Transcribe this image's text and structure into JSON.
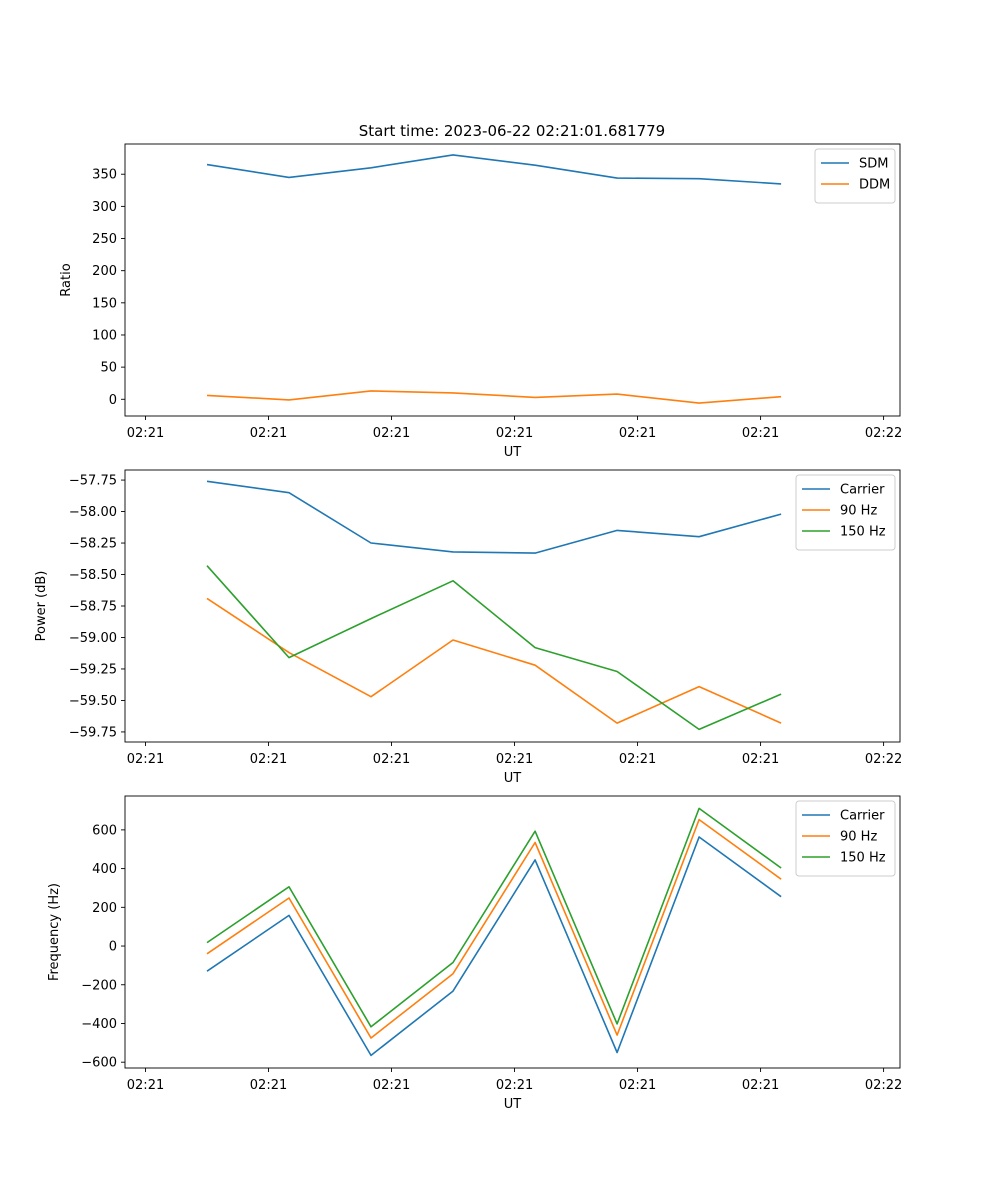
{
  "title": "Start time: 2023-06-22 02:21:01.681779",
  "chart_data": [
    {
      "type": "line",
      "xlabel": "UT",
      "ylabel": "Ratio",
      "x_tick_labels": [
        "02:21",
        "02:21",
        "02:21",
        "02:21",
        "02:21",
        "02:21",
        "02:22"
      ],
      "y_ticks": [
        0,
        50,
        100,
        150,
        200,
        250,
        300,
        350
      ],
      "ylim": [
        -26,
        397
      ],
      "legend_position": "top-right",
      "grid": false,
      "series": [
        {
          "name": "SDM",
          "color": "#1f77b4",
          "values": [
            365,
            345,
            360,
            380,
            364,
            344,
            343,
            335
          ]
        },
        {
          "name": "DDM",
          "color": "#ff7f0e",
          "values": [
            6,
            -1,
            13,
            10,
            3,
            8,
            -6,
            4
          ]
        }
      ]
    },
    {
      "type": "line",
      "xlabel": "UT",
      "ylabel": "Power (dB)",
      "x_tick_labels": [
        "02:21",
        "02:21",
        "02:21",
        "02:21",
        "02:21",
        "02:21",
        "02:22"
      ],
      "y_ticks": [
        -59.75,
        -59.5,
        -59.25,
        -59.0,
        -58.75,
        -58.5,
        -58.25,
        -58.0,
        -57.75
      ],
      "y_tick_labels": [
        "−59.75",
        "−59.50",
        "−59.25",
        "−59.00",
        "−58.75",
        "−58.50",
        "−58.25",
        "−58.00",
        "−57.75"
      ],
      "ylim": [
        -59.83,
        -57.67
      ],
      "legend_position": "top-right",
      "grid": false,
      "series": [
        {
          "name": "Carrier",
          "color": "#1f77b4",
          "values": [
            -57.76,
            -57.85,
            -58.25,
            -58.32,
            -58.33,
            -58.15,
            -58.2,
            -58.02
          ]
        },
        {
          "name": "90 Hz",
          "color": "#ff7f0e",
          "values": [
            -58.69,
            -59.12,
            -59.47,
            -59.02,
            -59.22,
            -59.68,
            -59.39,
            -59.68
          ]
        },
        {
          "name": "150 Hz",
          "color": "#2ca02c",
          "values": [
            -58.43,
            -59.16,
            -58.85,
            -58.55,
            -59.08,
            -59.27,
            -59.73,
            -59.45
          ]
        }
      ]
    },
    {
      "type": "line",
      "xlabel": "UT",
      "ylabel": "Frequency (Hz)",
      "x_tick_labels": [
        "02:21",
        "02:21",
        "02:21",
        "02:21",
        "02:21",
        "02:21",
        "02:22"
      ],
      "y_ticks": [
        -600,
        -400,
        -200,
        0,
        200,
        400,
        600
      ],
      "y_tick_labels": [
        "−600",
        "−400",
        "−200",
        "0",
        "200",
        "400",
        "600"
      ],
      "ylim": [
        -630,
        775
      ],
      "legend_position": "top-right",
      "grid": false,
      "series": [
        {
          "name": "Carrier",
          "color": "#1f77b4",
          "values": [
            -130,
            158,
            -565,
            -233,
            445,
            -550,
            563,
            255
          ]
        },
        {
          "name": "90 Hz",
          "color": "#ff7f0e",
          "values": [
            -40,
            248,
            -475,
            -143,
            535,
            -460,
            653,
            345
          ]
        },
        {
          "name": "150 Hz",
          "color": "#2ca02c",
          "values": [
            18,
            306,
            -417,
            -85,
            593,
            -402,
            711,
            403
          ]
        }
      ]
    }
  ]
}
